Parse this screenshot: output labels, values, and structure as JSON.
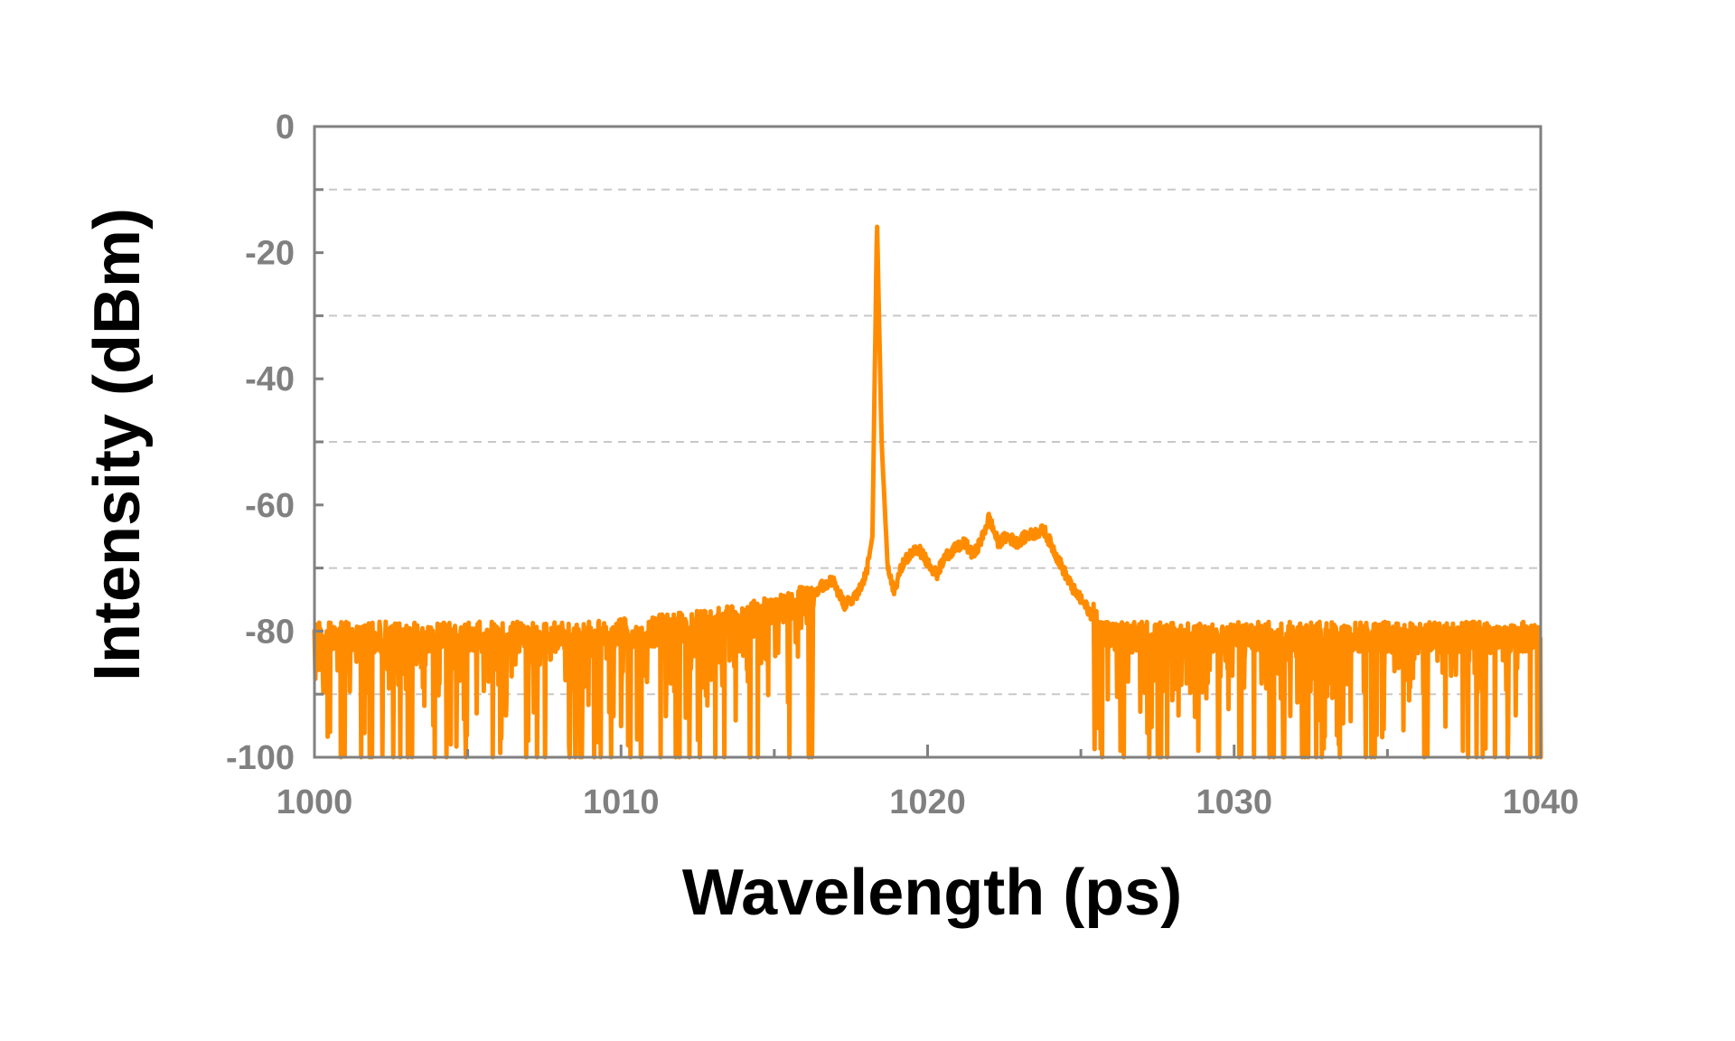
{
  "chart_data": {
    "type": "line",
    "title": "",
    "xlabel": "Wavelength (ps)",
    "ylabel": "Intensity (dBm)",
    "xlim": [
      1000,
      1040
    ],
    "ylim": [
      -100,
      0
    ],
    "x_ticks": [
      1000,
      1010,
      1020,
      1030,
      1040
    ],
    "x_tick_labels": [
      "1000",
      "1010",
      "1020",
      "1030",
      "1040"
    ],
    "y_ticks": [
      0,
      -20,
      -40,
      -60,
      -80,
      -100
    ],
    "y_tick_labels": [
      "0",
      "-20",
      "-40",
      "-60",
      "-80",
      "-100"
    ],
    "grid": "horizontal dashed",
    "legend": "none",
    "colors": {
      "line": "#ff8c00",
      "axis": "#808080",
      "grid": "#c8c8c8",
      "tick_text": "#808080",
      "title_text": "#000000"
    },
    "series": [
      {
        "x": [
          1000,
          1001,
          1002,
          1003,
          1004,
          1005,
          1006,
          1007,
          1008,
          1009,
          1010,
          1011,
          1012,
          1013,
          1014,
          1015,
          1015.5,
          1016,
          1016.5,
          1016.9,
          1017.3,
          1017.7,
          1018.0,
          1018.2,
          1018.35,
          1018.5,
          1018.7,
          1018.9,
          1019.1,
          1019.4,
          1019.7,
          1020.0,
          1020.3,
          1020.6,
          1020.9,
          1021.2,
          1021.5,
          1021.8,
          1022.0,
          1022.3,
          1022.6,
          1022.9,
          1023.2,
          1023.5,
          1023.8,
          1024.1,
          1024.4,
          1024.7,
          1025.0,
          1025.3,
          1025.6,
          1026,
          1027,
          1028,
          1029,
          1030,
          1031,
          1032,
          1033,
          1034,
          1035,
          1036,
          1037,
          1038,
          1039,
          1040
        ],
        "y": [
          -81,
          -81,
          -81,
          -81,
          -81,
          -81,
          -81,
          -81,
          -81,
          -81,
          -80.5,
          -80,
          -79.5,
          -79,
          -78,
          -77,
          -76,
          -75,
          -73,
          -72,
          -76,
          -74,
          -71,
          -65,
          -15,
          -50,
          -70,
          -74,
          -70,
          -68,
          -67,
          -69,
          -71,
          -68,
          -67,
          -66,
          -68,
          -65,
          -62,
          -66,
          -65,
          -66,
          -65,
          -64.5,
          -64,
          -67,
          -70,
          -73,
          -75,
          -77,
          -80,
          -81,
          -81,
          -81,
          -81,
          -81,
          -81,
          -81,
          -81,
          -81,
          -81,
          -81,
          -81,
          -81,
          -81,
          -81
        ],
        "noise_floor": -100
      }
    ]
  }
}
